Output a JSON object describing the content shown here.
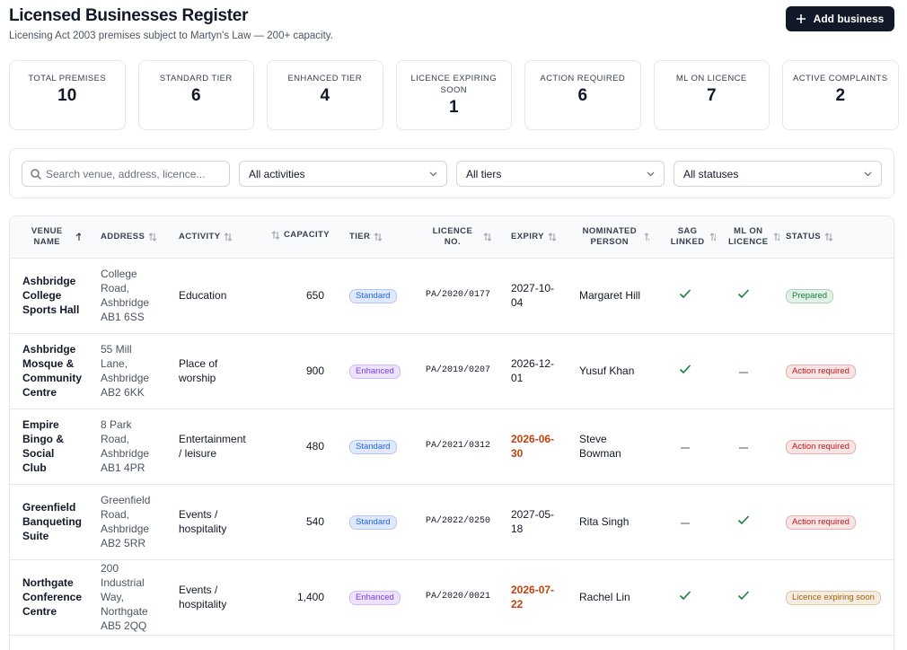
{
  "header": {
    "title": "Licensed Businesses Register",
    "subtitle": "Licensing Act 2003 premises subject to Martyn's Law — 200+ capacity.",
    "button": "Add business"
  },
  "stats": [
    {
      "label": "TOTAL PREMISES",
      "value": "10"
    },
    {
      "label": "STANDARD TIER",
      "value": "6"
    },
    {
      "label": "ENHANCED TIER",
      "value": "4"
    },
    {
      "label": "LICENCE EXPIRING SOON",
      "value": "1"
    },
    {
      "label": "ACTION REQUIRED",
      "value": "6"
    },
    {
      "label": "ML ON LICENCE",
      "value": "7"
    },
    {
      "label": "ACTIVE COMPLAINTS",
      "value": "2"
    }
  ],
  "filters": {
    "search_placeholder": "Search venue, address, licence...",
    "selects": [
      "All activities",
      "All tiers",
      "All statuses"
    ]
  },
  "table": {
    "columns": [
      {
        "label": "VENUE NAME",
        "sort": "asc",
        "align": "left"
      },
      {
        "label": "ADDRESS",
        "sort": "none",
        "align": "left"
      },
      {
        "label": "ACTIVITY",
        "sort": "none",
        "align": "left"
      },
      {
        "label": "CAPACITY",
        "sort": "none",
        "align": "right"
      },
      {
        "label": "TIER",
        "sort": "none",
        "align": "left"
      },
      {
        "label": "LICENCE NO.",
        "sort": "none",
        "align": "center"
      },
      {
        "label": "EXPIRY",
        "sort": "none",
        "align": "left"
      },
      {
        "label": "NOMINATED PERSON",
        "sort": "none",
        "align": "center"
      },
      {
        "label": "SAG LINKED",
        "sort": "none",
        "align": "center"
      },
      {
        "label": "ML ON LICENCE",
        "sort": "none",
        "align": "center"
      },
      {
        "label": "STATUS",
        "sort": "none",
        "align": "left"
      }
    ],
    "rows": [
      {
        "venue": "Ashbridge College Sports Hall",
        "address": "College Road, Ashbridge AB1 6SS",
        "activity": "Education",
        "capacity": "650",
        "tier": "Standard",
        "tier_color": "#2563eb",
        "licence": "PA/2020/0177",
        "expiry": "2027-10-04",
        "expiry_warning": false,
        "person": "Margaret Hill",
        "sag_linked": true,
        "ml_on_licence": true,
        "status": "Prepared",
        "status_color": "#15803d"
      },
      {
        "venue": "Ashbridge Mosque & Community Centre",
        "address": "55 Mill Lane, Ashbridge AB2 6KK",
        "activity": "Place of worship",
        "capacity": "900",
        "tier": "Enhanced",
        "tier_color": "#7c3aed",
        "licence": "PA/2019/0207",
        "expiry": "2026-12-01",
        "expiry_warning": false,
        "person": "Yusuf Khan",
        "sag_linked": true,
        "ml_on_licence": false,
        "status": "Action required",
        "status_color": "#b91c1c"
      },
      {
        "venue": "Empire Bingo & Social Club",
        "address": "8 Park Road, Ashbridge AB1 4PR",
        "activity": "Entertainment / leisure",
        "capacity": "480",
        "tier": "Standard",
        "tier_color": "#2563eb",
        "licence": "PA/2021/0312",
        "expiry": "2026-06-30",
        "expiry_warning": true,
        "person": "Steve Bowman",
        "sag_linked": false,
        "ml_on_licence": false,
        "status": "Action required",
        "status_color": "#b91c1c"
      },
      {
        "venue": "Greenfield Banqueting Suite",
        "address": "Greenfield Road, Ashbridge AB2 5RR",
        "activity": "Events / hospitality",
        "capacity": "540",
        "tier": "Standard",
        "tier_color": "#2563eb",
        "licence": "PA/2022/0250",
        "expiry": "2027-05-18",
        "expiry_warning": false,
        "person": "Rita Singh",
        "sag_linked": false,
        "ml_on_licence": true,
        "status": "Action required",
        "status_color": "#b91c1c"
      },
      {
        "venue": "Northgate Conference Centre",
        "address": "200 Industrial Way, Northgate AB5 2QQ",
        "activity": "Events / hospitality",
        "capacity": "1,400",
        "tier": "Enhanced",
        "tier_color": "#7c3aed",
        "licence": "PA/2020/0021",
        "expiry": "2026-07-22",
        "expiry_warning": true,
        "person": "Rachel Lin",
        "sag_linked": true,
        "ml_on_licence": true,
        "status": "Licence expiring soon",
        "status_color": "#a16207"
      }
    ]
  }
}
